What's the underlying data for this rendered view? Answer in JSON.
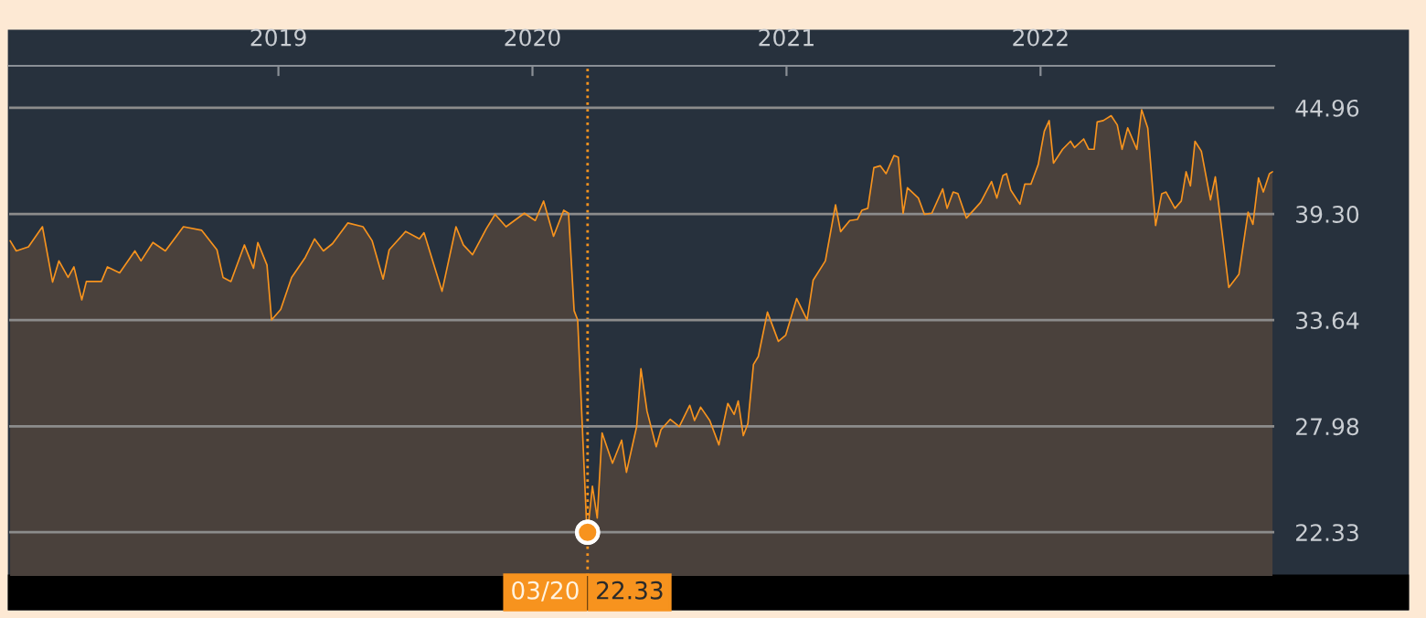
{
  "chart_data": {
    "type": "area",
    "x": [
      2017.944,
      2017.968,
      2018.016,
      2018.071,
      2018.111,
      2018.136,
      2018.172,
      2018.195,
      2018.226,
      2018.244,
      2018.303,
      2018.327,
      2018.375,
      2018.435,
      2018.459,
      2018.506,
      2018.555,
      2018.598,
      2018.626,
      2018.698,
      2018.758,
      2018.782,
      2018.813,
      2018.866,
      2018.902,
      2018.919,
      2018.955,
      2018.973,
      2019.009,
      2019.052,
      2019.106,
      2019.142,
      2019.177,
      2019.213,
      2019.273,
      2019.333,
      2019.369,
      2019.412,
      2019.436,
      2019.501,
      2019.555,
      2019.573,
      2019.644,
      2019.699,
      2019.728,
      2019.764,
      2019.819,
      2019.853,
      2019.896,
      2019.968,
      2020.011,
      2020.044,
      2020.083,
      2020.123,
      2020.142,
      2020.164,
      2020.178,
      2020.212,
      2020.217,
      2020.236,
      2020.255,
      2020.274,
      2020.315,
      2020.351,
      2020.37,
      2020.41,
      2020.427,
      2020.451,
      2020.487,
      2020.506,
      2020.542,
      2020.578,
      2020.619,
      2020.638,
      2020.662,
      2020.698,
      2020.734,
      2020.769,
      2020.794,
      2020.81,
      2020.83,
      2020.848,
      2020.87,
      2020.889,
      2020.925,
      2020.968,
      2020.997,
      2021.04,
      2021.081,
      2021.105,
      2021.153,
      2021.193,
      2021.213,
      2021.249,
      2021.279,
      2021.297,
      2021.32,
      2021.344,
      2021.369,
      2021.392,
      2021.423,
      2021.44,
      2021.459,
      2021.476,
      2021.519,
      2021.543,
      2021.572,
      2021.615,
      2021.632,
      2021.656,
      2021.675,
      2021.708,
      2021.764,
      2021.807,
      2021.828,
      2021.852,
      2021.866,
      2021.883,
      2021.919,
      2021.938,
      2021.962,
      2021.991,
      2022.015,
      2022.034,
      2022.051,
      2022.087,
      2022.118,
      2022.134,
      2022.17,
      2022.19,
      2022.211,
      2022.223,
      2022.247,
      2022.278,
      2022.302,
      2022.321,
      2022.343,
      2022.379,
      2022.398,
      2022.422,
      2022.453,
      2022.477,
      2022.494,
      2022.529,
      2022.554,
      2022.573,
      2022.59,
      2022.608,
      2022.633,
      2022.669,
      2022.688,
      2022.741,
      2022.781,
      2022.817,
      2022.836,
      2022.858,
      2022.877,
      2022.901,
      2022.913
    ],
    "series": [
      {
        "color": "#f7931e",
        "values": [
          37.87,
          37.33,
          37.55,
          38.62,
          35.67,
          36.8,
          35.92,
          36.48,
          34.72,
          35.7,
          35.7,
          36.48,
          36.16,
          37.33,
          36.8,
          37.78,
          37.33,
          38.11,
          38.62,
          38.43,
          37.39,
          35.92,
          35.7,
          37.65,
          36.41,
          37.78,
          36.58,
          33.65,
          34.21,
          35.92,
          36.99,
          37.97,
          37.33,
          37.72,
          38.82,
          38.62,
          37.87,
          35.83,
          37.39,
          38.37,
          37.97,
          38.3,
          35.18,
          38.62,
          37.65,
          37.13,
          38.53,
          39.28,
          38.62,
          39.34,
          38.95,
          39.99,
          38.11,
          39.5,
          39.34,
          34.14,
          33.65,
          23.09,
          22.33,
          24.78,
          23.09,
          27.63,
          26.01,
          27.24,
          25.53,
          27.96,
          31.05,
          28.78,
          26.89,
          27.8,
          28.35,
          27.96,
          29.1,
          28.29,
          29.0,
          28.29,
          26.99,
          29.2,
          28.61,
          29.33,
          27.48,
          28.12,
          31.28,
          31.7,
          34.07,
          32.51,
          32.84,
          34.79,
          33.65,
          35.77,
          36.8,
          39.79,
          38.36,
          38.95,
          39.01,
          39.5,
          39.6,
          41.77,
          41.87,
          41.45,
          42.42,
          42.33,
          39.33,
          40.7,
          40.15,
          39.28,
          39.34,
          40.64,
          39.6,
          40.47,
          40.38,
          39.08,
          39.92,
          41.03,
          40.15,
          41.35,
          41.45,
          40.57,
          39.82,
          40.89,
          40.89,
          41.94,
          43.72,
          44.28,
          42.01,
          42.75,
          43.18,
          42.84,
          43.3,
          42.75,
          42.75,
          44.21,
          44.28,
          44.54,
          44.05,
          42.75,
          43.89,
          42.75,
          44.86,
          43.89,
          38.69,
          40.38,
          40.47,
          39.6,
          39.99,
          41.55,
          40.8,
          43.18,
          42.65,
          40.05,
          41.28,
          35.38,
          36.09,
          39.4,
          38.75,
          41.22,
          40.47,
          41.45,
          41.55
        ]
      }
    ],
    "xlim": [
      2017.94,
      2022.92
    ],
    "xticks": [
      2019,
      2020,
      2021,
      2022
    ],
    "ylim": [
      20.0,
      47.2
    ],
    "yticks": [
      22.33,
      27.98,
      33.64,
      {
        "value": 39.3,
        "label": "39.30"
      },
      44.96
    ],
    "grid": "y",
    "ref_lines": [
      {
        "axis": "x",
        "value": 2020.217,
        "color": "#f7931e",
        "line_style": "dotted"
      }
    ],
    "annotations": [
      {
        "text": "03/20",
        "x": 2020.217,
        "y": 22.33
      },
      {
        "text": "22.33",
        "x": 2020.217,
        "y": 22.33
      }
    ]
  }
}
